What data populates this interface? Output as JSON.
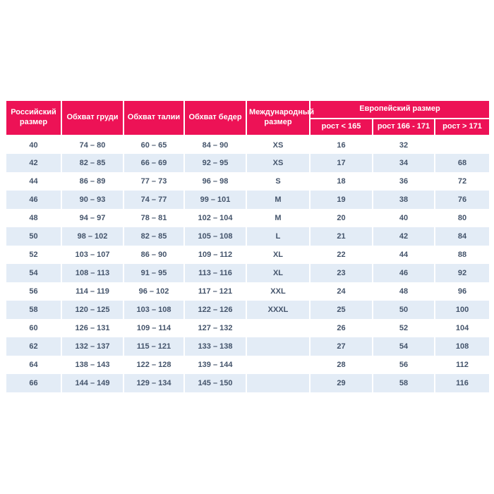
{
  "chart_data": {
    "type": "table",
    "columns": [
      "Российский размер",
      "Обхват груди",
      "Обхват талии",
      "Обхват бедер",
      "Международный размер"
    ],
    "column_group": {
      "label": "Европейский размер",
      "sub_columns": [
        "рост < 165",
        "рост 166 - 171",
        "рост > 171"
      ]
    },
    "rows": [
      [
        "40",
        "74 – 80",
        "60 – 65",
        "84 – 90",
        "XS",
        "16",
        "32",
        ""
      ],
      [
        "42",
        "82 – 85",
        "66 – 69",
        "92 – 95",
        "XS",
        "17",
        "34",
        "68"
      ],
      [
        "44",
        "86 – 89",
        "77 – 73",
        "96 – 98",
        "S",
        "18",
        "36",
        "72"
      ],
      [
        "46",
        "90 – 93",
        "74 – 77",
        "99 – 101",
        "M",
        "19",
        "38",
        "76"
      ],
      [
        "48",
        "94 – 97",
        "78 – 81",
        "102 – 104",
        "M",
        "20",
        "40",
        "80"
      ],
      [
        "50",
        "98 – 102",
        "82 – 85",
        "105 – 108",
        "L",
        "21",
        "42",
        "84"
      ],
      [
        "52",
        "103 – 107",
        "86 – 90",
        "109 – 112",
        "XL",
        "22",
        "44",
        "88"
      ],
      [
        "54",
        "108 – 113",
        "91 – 95",
        "113 – 116",
        "XL",
        "23",
        "46",
        "92"
      ],
      [
        "56",
        "114 – 119",
        "96 – 102",
        "117 – 121",
        "XXL",
        "24",
        "48",
        "96"
      ],
      [
        "58",
        "120 – 125",
        "103 – 108",
        "122 – 126",
        "XXXL",
        "25",
        "50",
        "100"
      ],
      [
        "60",
        "126 – 131",
        "109 – 114",
        "127 – 132",
        "",
        "26",
        "52",
        "104"
      ],
      [
        "62",
        "132 – 137",
        "115 – 121",
        "133 – 138",
        "",
        "27",
        "54",
        "108"
      ],
      [
        "64",
        "138 – 143",
        "122 – 128",
        "139 – 144",
        "",
        "28",
        "56",
        "112"
      ],
      [
        "66",
        "144 – 149",
        "129 – 134",
        "145 – 150",
        "",
        "29",
        "58",
        "116"
      ]
    ],
    "layout_hints": {
      "striped": true,
      "stripe_start_row": 2,
      "header_span_rows": 2
    },
    "colors": {
      "header_bg": "#ED1256",
      "header_text": "#FFFFFF",
      "stripe_bg": "#E3ECF6",
      "cell_text": "#44546B",
      "page_bg": "#FFFFFF"
    }
  }
}
